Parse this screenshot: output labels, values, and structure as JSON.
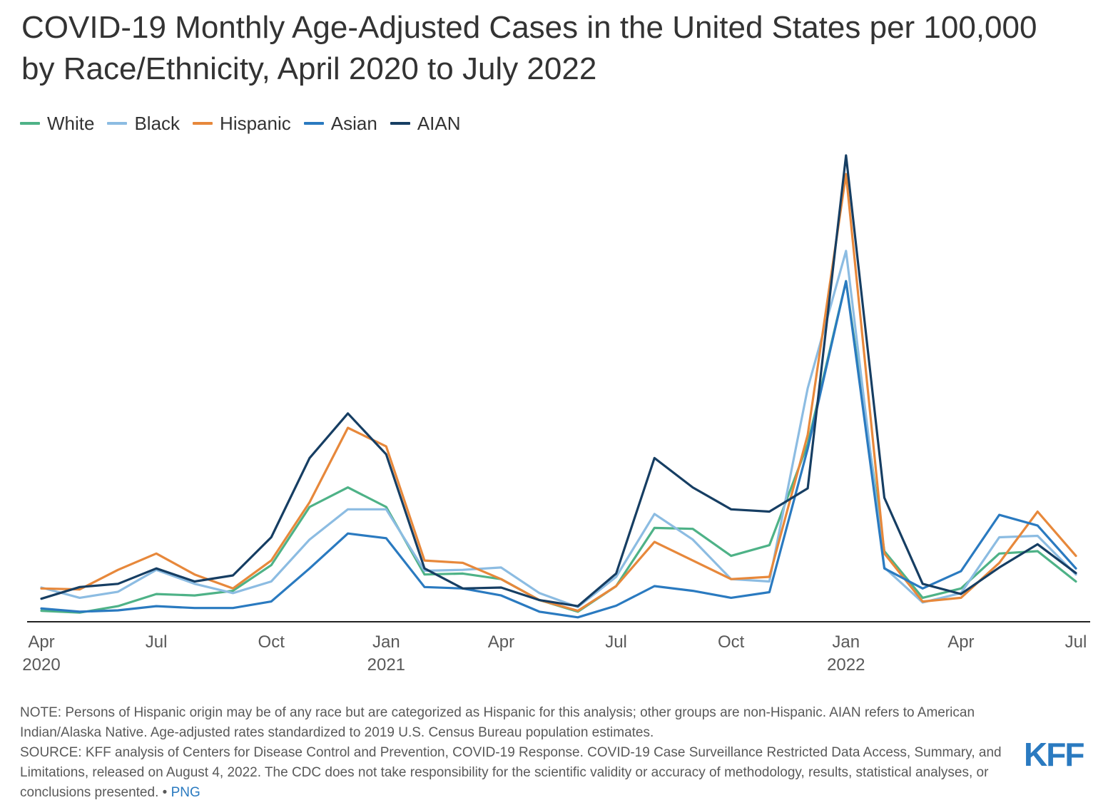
{
  "title": "COVID-19 Monthly Age-Adjusted Cases in the United States per 100,000 by Race/Ethnicity, April 2020 to July 2022",
  "colors": {
    "White": "#4eb287",
    "Black": "#8cbce2",
    "Hispanic": "#e7883b",
    "Asian": "#2a7ac0",
    "AIAN": "#163e63",
    "axis": "#222222",
    "link": "#2a7ac0",
    "logo": "#2a7ac0"
  },
  "legend": [
    {
      "name": "White"
    },
    {
      "name": "Black"
    },
    {
      "name": "Hispanic"
    },
    {
      "name": "Asian"
    },
    {
      "name": "AIAN"
    }
  ],
  "chart_data": {
    "type": "line",
    "title": "COVID-19 Monthly Age-Adjusted Cases in the United States per 100,000 by Race/Ethnicity, April 2020 to July 2022",
    "xlabel": "",
    "ylabel": "",
    "grid": false,
    "y_axis_shown": false,
    "legend_position": "top-left",
    "x": [
      "2020-04",
      "2020-05",
      "2020-06",
      "2020-07",
      "2020-08",
      "2020-09",
      "2020-10",
      "2020-11",
      "2020-12",
      "2021-01",
      "2021-02",
      "2021-03",
      "2021-04",
      "2021-05",
      "2021-06",
      "2021-07",
      "2021-08",
      "2021-09",
      "2021-10",
      "2021-11",
      "2021-12",
      "2022-01",
      "2022-02",
      "2022-03",
      "2022-04",
      "2022-05",
      "2022-06",
      "2022-07"
    ],
    "x_ticks": [
      {
        "index": 0,
        "label": "Apr",
        "year": "2020"
      },
      {
        "index": 3,
        "label": "Jul",
        "year": ""
      },
      {
        "index": 6,
        "label": "Oct",
        "year": ""
      },
      {
        "index": 9,
        "label": "Jan",
        "year": "2021"
      },
      {
        "index": 12,
        "label": "Apr",
        "year": ""
      },
      {
        "index": 15,
        "label": "Jul",
        "year": ""
      },
      {
        "index": 18,
        "label": "Oct",
        "year": ""
      },
      {
        "index": 21,
        "label": "Jan",
        "year": "2022"
      },
      {
        "index": 24,
        "label": "Apr",
        "year": ""
      },
      {
        "index": 27,
        "label": "Jul",
        "year": ""
      }
    ],
    "ylim": [
      0,
      1000
    ],
    "series": [
      {
        "name": "White",
        "values": [
          22,
          18,
          32,
          58,
          55,
          65,
          120,
          245,
          287,
          245,
          100,
          102,
          90,
          45,
          20,
          75,
          200,
          198,
          140,
          163,
          380,
          730,
          150,
          50,
          70,
          145,
          150,
          85
        ]
      },
      {
        "name": "Black",
        "values": [
          72,
          50,
          63,
          110,
          80,
          60,
          85,
          175,
          240,
          240,
          108,
          110,
          115,
          60,
          30,
          95,
          230,
          175,
          90,
          85,
          500,
          795,
          115,
          40,
          60,
          180,
          183,
          100
        ]
      },
      {
        "name": "Hispanic",
        "values": [
          70,
          68,
          110,
          145,
          100,
          70,
          130,
          255,
          415,
          375,
          130,
          125,
          90,
          45,
          22,
          75,
          170,
          130,
          90,
          95,
          400,
          960,
          145,
          42,
          50,
          125,
          235,
          140
        ]
      },
      {
        "name": "Asian",
        "values": [
          27,
          20,
          23,
          32,
          28,
          28,
          42,
          113,
          188,
          178,
          73,
          70,
          55,
          20,
          8,
          33,
          75,
          65,
          50,
          62,
          370,
          730,
          113,
          70,
          107,
          228,
          205,
          113
        ]
      },
      {
        "name": "AIAN",
        "values": [
          48,
          73,
          80,
          113,
          85,
          98,
          180,
          350,
          446,
          358,
          113,
          70,
          72,
          45,
          32,
          102,
          350,
          287,
          240,
          235,
          285,
          1000,
          265,
          80,
          58,
          115,
          165,
          103
        ]
      }
    ]
  },
  "footer": {
    "note": "NOTE: Persons of Hispanic origin may be of any race but are categorized as Hispanic for this analysis; other groups are non-Hispanic. AIAN refers to American Indian/Alaska Native. Age-adjusted rates standardized to 2019 U.S. Census Bureau population estimates.",
    "source": "SOURCE: KFF analysis of Centers for Disease Control and Prevention, COVID-19 Response. COVID-19 Case Surveillance Restricted Data Access, Summary, and Limitations, released on August 4, 2022. The CDC does not take responsibility for the scientific validity or accuracy of methodology, results, statistical analyses, or conclusions presented. • ",
    "png_link": "PNG"
  },
  "logo": {
    "text": "KFF"
  }
}
